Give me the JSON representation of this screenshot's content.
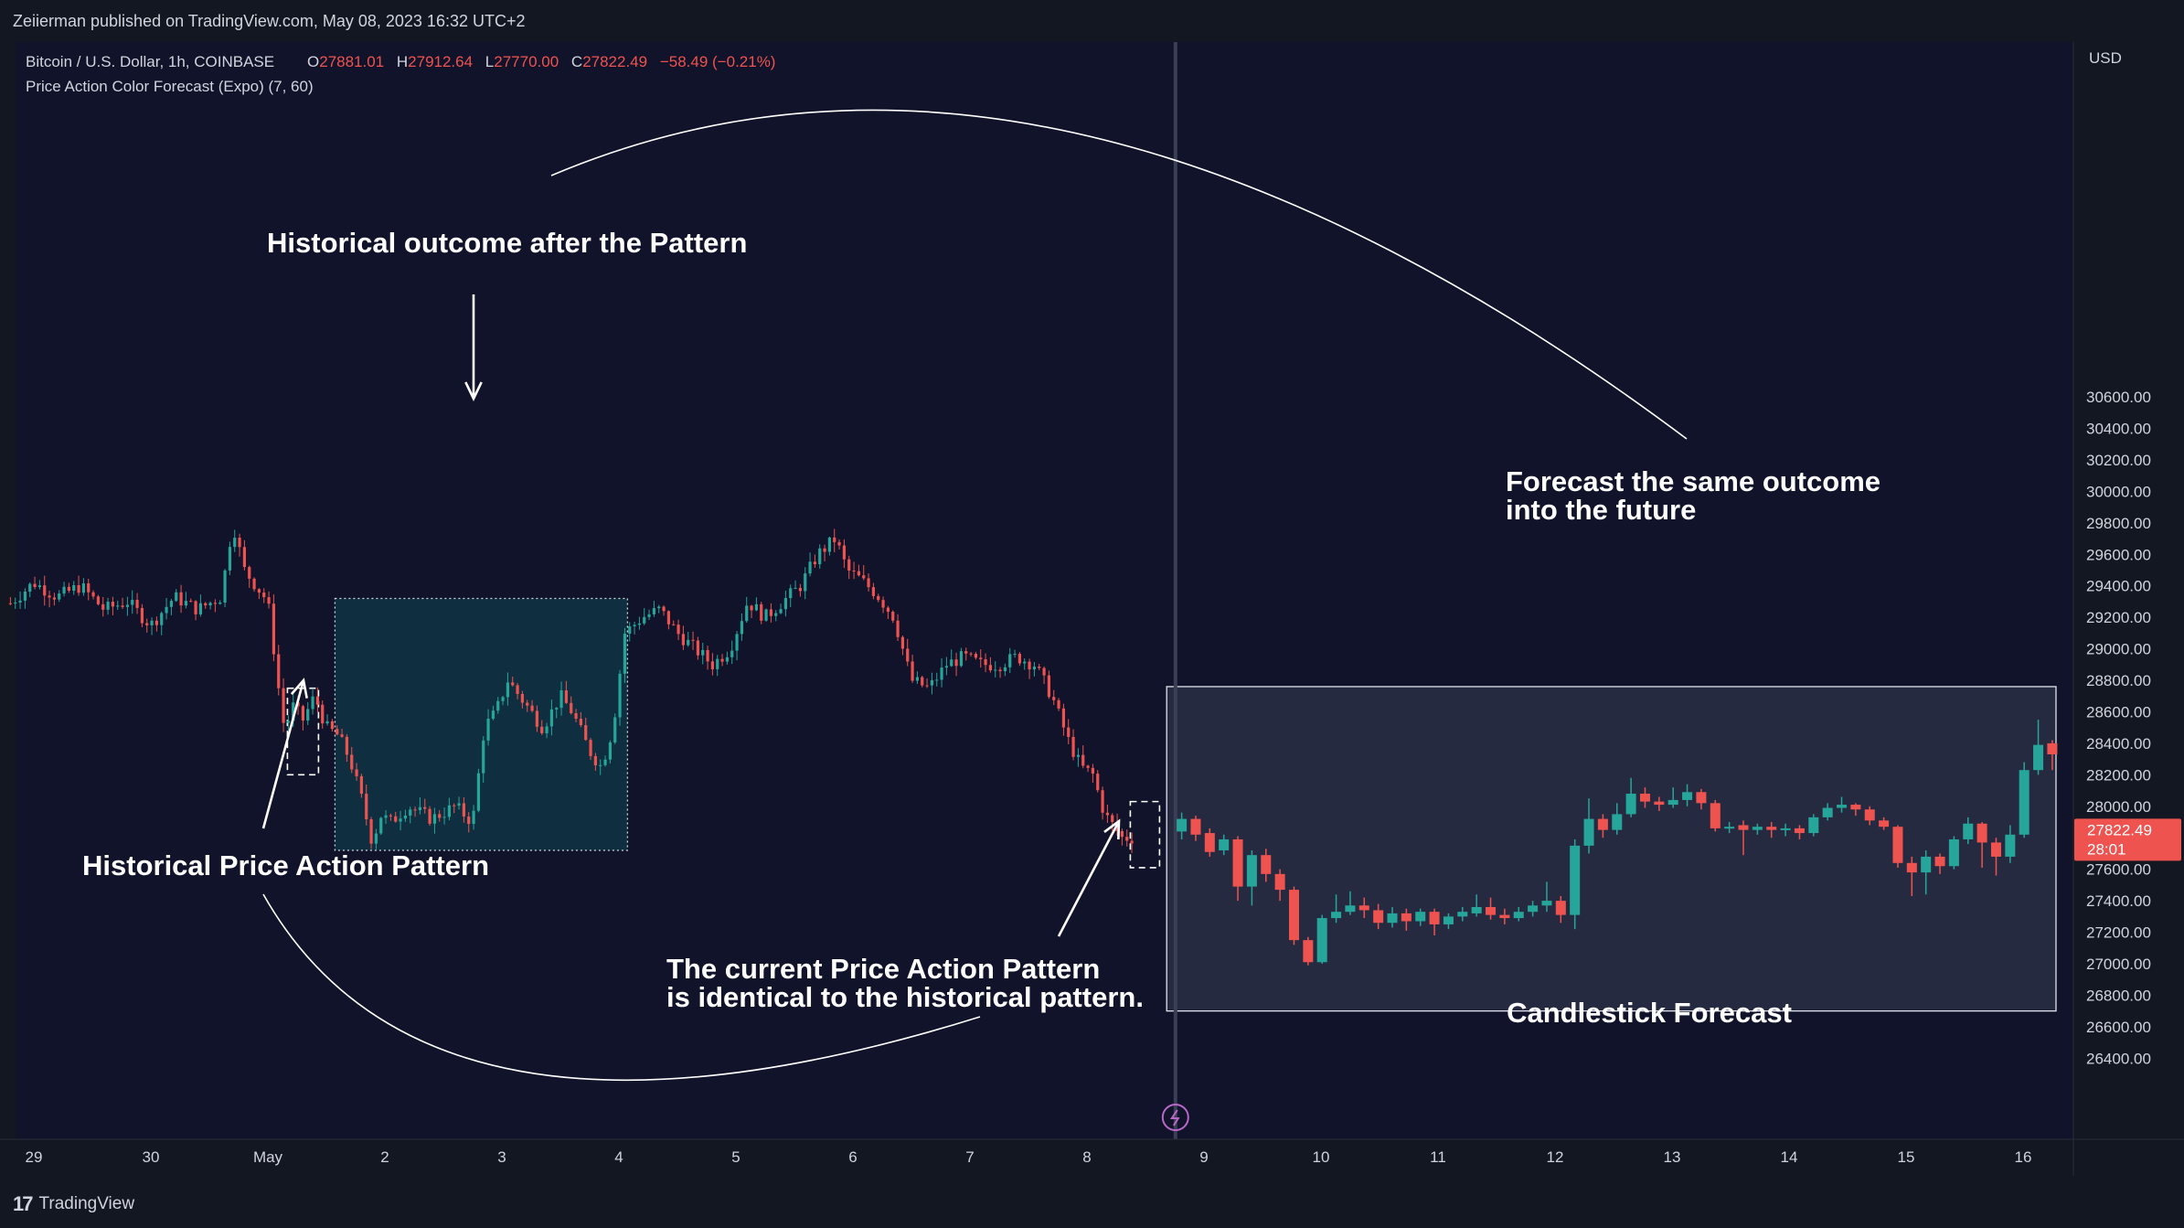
{
  "header": {
    "attribution": "Zeiierman published on TradingView.com, May 08, 2023 16:32 UTC+2"
  },
  "footer": {
    "logo_text": "TradingView",
    "logo_icon": "tradingview-logo-icon"
  },
  "legend": {
    "symbol": "Bitcoin / U.S. Dollar, 1h, COINBASE",
    "o_label": "O",
    "o_value": "27881.01",
    "h_label": "H",
    "h_value": "27912.64",
    "l_label": "L",
    "l_value": "27770.00",
    "c_label": "C",
    "c_value": "27822.49",
    "change": "−58.49 (−0.21%)",
    "indicator": "Price Action Color Forecast (Expo) (7, 60)"
  },
  "annotations": {
    "historical_outcome": "Historical outcome after the Pattern",
    "historical_pattern": "Historical Price Action Pattern",
    "current_pattern_line1": "The current Price Action Pattern",
    "current_pattern_line2": "is identical to the historical pattern.",
    "forecast_line1": "Forecast the same outcome",
    "forecast_line2": "into the future",
    "candlestick_forecast": "Candlestick Forecast"
  },
  "colors": {
    "background": "#131722",
    "plot_background": "#10132a",
    "up": "#26a69a",
    "down": "#ef5350",
    "outcome_box": "#0f2e3f",
    "forecast_box": "#262a40",
    "price_tag": "#ef5350",
    "text": "#d1d4dc"
  },
  "chart_data": {
    "type": "candlestick",
    "currency_label": "USD",
    "y_range": [
      26300,
      30800
    ],
    "y_ticks": [
      "30600.00",
      "30400.00",
      "30200.00",
      "30000.00",
      "29800.00",
      "29600.00",
      "29400.00",
      "29200.00",
      "29000.00",
      "28800.00",
      "28600.00",
      "28400.00",
      "28200.00",
      "28000.00",
      "27800.00",
      "27600.00",
      "27400.00",
      "27200.00",
      "27000.00",
      "26800.00",
      "26600.00",
      "26400.00"
    ],
    "x_ticks": [
      {
        "label": "29",
        "day": -2
      },
      {
        "label": "30",
        "day": -1
      },
      {
        "label": "May",
        "day": 0
      },
      {
        "label": "2",
        "day": 1
      },
      {
        "label": "3",
        "day": 2
      },
      {
        "label": "4",
        "day": 3
      },
      {
        "label": "5",
        "day": 4
      },
      {
        "label": "6",
        "day": 5
      },
      {
        "label": "7",
        "day": 6
      },
      {
        "label": "8",
        "day": 7
      },
      {
        "label": "9",
        "day": 8
      },
      {
        "label": "10",
        "day": 9
      },
      {
        "label": "11",
        "day": 10
      },
      {
        "label": "12",
        "day": 11
      },
      {
        "label": "13",
        "day": 12
      },
      {
        "label": "14",
        "day": 13
      },
      {
        "label": "15",
        "day": 14
      },
      {
        "label": "16",
        "day": 15
      }
    ],
    "last_price": "27822.49",
    "countdown": "28:01",
    "history_path": [
      [
        -2.2,
        29290
      ],
      [
        -2.0,
        29420
      ],
      [
        -1.8,
        29330
      ],
      [
        -1.6,
        29400
      ],
      [
        -1.4,
        29250
      ],
      [
        -1.2,
        29300
      ],
      [
        -1.0,
        29150
      ],
      [
        -0.8,
        29330
      ],
      [
        -0.6,
        29250
      ],
      [
        -0.4,
        29330
      ],
      [
        -0.3,
        29800
      ],
      [
        -0.2,
        29500
      ],
      [
        -0.1,
        29400
      ],
      [
        0.0,
        29300
      ],
      [
        0.1,
        28700
      ],
      [
        0.15,
        28450
      ],
      [
        0.2,
        28650
      ],
      [
        0.3,
        28550
      ],
      [
        0.4,
        28700
      ],
      [
        0.5,
        28500
      ],
      [
        0.6,
        28450
      ],
      [
        0.7,
        28300
      ],
      [
        0.8,
        28050
      ],
      [
        0.9,
        27750
      ],
      [
        0.95,
        27950
      ],
      [
        1.05,
        27900
      ],
      [
        1.2,
        28000
      ],
      [
        1.4,
        27920
      ],
      [
        1.6,
        28000
      ],
      [
        1.75,
        27900
      ],
      [
        1.85,
        28500
      ],
      [
        1.95,
        28600
      ],
      [
        2.05,
        28800
      ],
      [
        2.2,
        28650
      ],
      [
        2.35,
        28500
      ],
      [
        2.5,
        28700
      ],
      [
        2.6,
        28600
      ],
      [
        2.75,
        28350
      ],
      [
        2.85,
        28250
      ],
      [
        2.95,
        28500
      ],
      [
        3.0,
        28800
      ],
      [
        3.05,
        29100
      ],
      [
        3.2,
        29200
      ],
      [
        3.35,
        29250
      ],
      [
        3.5,
        29100
      ],
      [
        3.65,
        29000
      ],
      [
        3.8,
        28900
      ],
      [
        3.95,
        29000
      ],
      [
        4.1,
        29300
      ],
      [
        4.25,
        29200
      ],
      [
        4.4,
        29300
      ],
      [
        4.55,
        29400
      ],
      [
        4.7,
        29600
      ],
      [
        4.85,
        29700
      ],
      [
        4.95,
        29500
      ],
      [
        5.05,
        29450
      ],
      [
        5.2,
        29350
      ],
      [
        5.35,
        29200
      ],
      [
        5.5,
        28800
      ],
      [
        5.65,
        28750
      ],
      [
        5.8,
        28900
      ],
      [
        5.95,
        28950
      ],
      [
        6.1,
        28900
      ],
      [
        6.25,
        28900
      ],
      [
        6.4,
        28950
      ],
      [
        6.55,
        28900
      ],
      [
        6.7,
        28700
      ],
      [
        6.85,
        28400
      ],
      [
        6.95,
        28250
      ],
      [
        7.05,
        28200
      ],
      [
        7.15,
        27950
      ],
      [
        7.3,
        27800
      ],
      [
        7.4,
        27800
      ]
    ],
    "history_pattern_range": [
      0.3,
      0.55
    ],
    "outcome_range": [
      0.55,
      3.05
    ],
    "outcome_price_range": [
      27720,
      29320
    ],
    "current_pattern_range": [
      7.3,
      7.55
    ],
    "present_day": 7.6,
    "forecast_box_days": [
      7.65,
      15.25
    ],
    "forecast_box_prices": [
      26700,
      28760
    ],
    "forecast_candles": [
      {
        "t": 7.7,
        "o": 27840,
        "c": 27920,
        "h": 27960,
        "l": 27790
      },
      {
        "t": 7.82,
        "o": 27920,
        "c": 27820,
        "h": 27940,
        "l": 27780
      },
      {
        "t": 7.94,
        "o": 27830,
        "c": 27710,
        "h": 27860,
        "l": 27680
      },
      {
        "t": 8.06,
        "o": 27720,
        "c": 27790,
        "h": 27820,
        "l": 27690
      },
      {
        "t": 8.18,
        "o": 27790,
        "c": 27490,
        "h": 27810,
        "l": 27400
      },
      {
        "t": 8.3,
        "o": 27490,
        "c": 27690,
        "h": 27720,
        "l": 27370
      },
      {
        "t": 8.42,
        "o": 27690,
        "c": 27570,
        "h": 27730,
        "l": 27520
      },
      {
        "t": 8.54,
        "o": 27570,
        "c": 27470,
        "h": 27600,
        "l": 27400
      },
      {
        "t": 8.66,
        "o": 27470,
        "c": 27150,
        "h": 27490,
        "l": 27120
      },
      {
        "t": 8.78,
        "o": 27150,
        "c": 27010,
        "h": 27170,
        "l": 26990
      },
      {
        "t": 8.9,
        "o": 27010,
        "c": 27290,
        "h": 27310,
        "l": 27000
      },
      {
        "t": 9.02,
        "o": 27290,
        "c": 27330,
        "h": 27440,
        "l": 27260
      },
      {
        "t": 9.14,
        "o": 27330,
        "c": 27370,
        "h": 27460,
        "l": 27310
      },
      {
        "t": 9.26,
        "o": 27370,
        "c": 27340,
        "h": 27420,
        "l": 27290
      },
      {
        "t": 9.38,
        "o": 27340,
        "c": 27260,
        "h": 27380,
        "l": 27220
      },
      {
        "t": 9.5,
        "o": 27260,
        "c": 27320,
        "h": 27360,
        "l": 27230
      },
      {
        "t": 9.62,
        "o": 27320,
        "c": 27270,
        "h": 27350,
        "l": 27210
      },
      {
        "t": 9.74,
        "o": 27270,
        "c": 27330,
        "h": 27350,
        "l": 27240
      },
      {
        "t": 9.86,
        "o": 27330,
        "c": 27250,
        "h": 27350,
        "l": 27180
      },
      {
        "t": 9.98,
        "o": 27250,
        "c": 27300,
        "h": 27320,
        "l": 27220
      },
      {
        "t": 10.1,
        "o": 27300,
        "c": 27330,
        "h": 27360,
        "l": 27270
      },
      {
        "t": 10.22,
        "o": 27320,
        "c": 27360,
        "h": 27440,
        "l": 27300
      },
      {
        "t": 10.34,
        "o": 27360,
        "c": 27310,
        "h": 27420,
        "l": 27280
      },
      {
        "t": 10.46,
        "o": 27310,
        "c": 27290,
        "h": 27350,
        "l": 27250
      },
      {
        "t": 10.58,
        "o": 27290,
        "c": 27330,
        "h": 27360,
        "l": 27270
      },
      {
        "t": 10.7,
        "o": 27330,
        "c": 27370,
        "h": 27400,
        "l": 27300
      },
      {
        "t": 10.82,
        "o": 27370,
        "c": 27400,
        "h": 27520,
        "l": 27330
      },
      {
        "t": 10.94,
        "o": 27400,
        "c": 27310,
        "h": 27430,
        "l": 27260
      },
      {
        "t": 11.06,
        "o": 27310,
        "c": 27750,
        "h": 27790,
        "l": 27220
      },
      {
        "t": 11.18,
        "o": 27750,
        "c": 27920,
        "h": 28050,
        "l": 27700
      },
      {
        "t": 11.3,
        "o": 27920,
        "c": 27850,
        "h": 27950,
        "l": 27800
      },
      {
        "t": 11.42,
        "o": 27850,
        "c": 27950,
        "h": 28020,
        "l": 27820
      },
      {
        "t": 11.54,
        "o": 27950,
        "c": 28080,
        "h": 28180,
        "l": 27930
      },
      {
        "t": 11.66,
        "o": 28080,
        "c": 28030,
        "h": 28120,
        "l": 27990
      },
      {
        "t": 11.78,
        "o": 28030,
        "c": 28010,
        "h": 28060,
        "l": 27970
      },
      {
        "t": 11.9,
        "o": 28010,
        "c": 28040,
        "h": 28120,
        "l": 27990
      },
      {
        "t": 12.02,
        "o": 28040,
        "c": 28090,
        "h": 28140,
        "l": 28000
      },
      {
        "t": 12.14,
        "o": 28090,
        "c": 28020,
        "h": 28110,
        "l": 27980
      },
      {
        "t": 12.26,
        "o": 28020,
        "c": 27860,
        "h": 28040,
        "l": 27840
      },
      {
        "t": 12.38,
        "o": 27860,
        "c": 27870,
        "h": 27900,
        "l": 27830
      },
      {
        "t": 12.5,
        "o": 27880,
        "c": 27850,
        "h": 27910,
        "l": 27690
      },
      {
        "t": 12.62,
        "o": 27850,
        "c": 27870,
        "h": 27890,
        "l": 27820
      },
      {
        "t": 12.74,
        "o": 27870,
        "c": 27850,
        "h": 27900,
        "l": 27800
      },
      {
        "t": 12.86,
        "o": 27850,
        "c": 27860,
        "h": 27890,
        "l": 27810
      },
      {
        "t": 12.98,
        "o": 27860,
        "c": 27830,
        "h": 27880,
        "l": 27790
      },
      {
        "t": 13.1,
        "o": 27830,
        "c": 27930,
        "h": 27950,
        "l": 27810
      },
      {
        "t": 13.22,
        "o": 27930,
        "c": 27990,
        "h": 28020,
        "l": 27910
      },
      {
        "t": 13.34,
        "o": 27990,
        "c": 28010,
        "h": 28060,
        "l": 27960
      },
      {
        "t": 13.46,
        "o": 28010,
        "c": 27980,
        "h": 28020,
        "l": 27940
      },
      {
        "t": 13.58,
        "o": 27980,
        "c": 27910,
        "h": 28000,
        "l": 27880
      },
      {
        "t": 13.7,
        "o": 27910,
        "c": 27870,
        "h": 27930,
        "l": 27850
      },
      {
        "t": 13.82,
        "o": 27870,
        "c": 27640,
        "h": 27880,
        "l": 27610
      },
      {
        "t": 13.94,
        "o": 27640,
        "c": 27580,
        "h": 27680,
        "l": 27430
      },
      {
        "t": 14.06,
        "o": 27580,
        "c": 27680,
        "h": 27720,
        "l": 27440
      },
      {
        "t": 14.18,
        "o": 27680,
        "c": 27620,
        "h": 27700,
        "l": 27570
      },
      {
        "t": 14.3,
        "o": 27620,
        "c": 27790,
        "h": 27810,
        "l": 27600
      },
      {
        "t": 14.42,
        "o": 27790,
        "c": 27890,
        "h": 27930,
        "l": 27760
      },
      {
        "t": 14.54,
        "o": 27890,
        "c": 27770,
        "h": 27900,
        "l": 27610
      },
      {
        "t": 14.66,
        "o": 27770,
        "c": 27680,
        "h": 27800,
        "l": 27560
      },
      {
        "t": 14.78,
        "o": 27680,
        "c": 27820,
        "h": 27880,
        "l": 27640
      },
      {
        "t": 14.9,
        "o": 27820,
        "c": 28230,
        "h": 28280,
        "l": 27800
      },
      {
        "t": 15.02,
        "o": 28230,
        "c": 28390,
        "h": 28550,
        "l": 28200
      },
      {
        "t": 15.14,
        "o": 28400,
        "c": 28330,
        "h": 28420,
        "l": 28230
      }
    ]
  }
}
